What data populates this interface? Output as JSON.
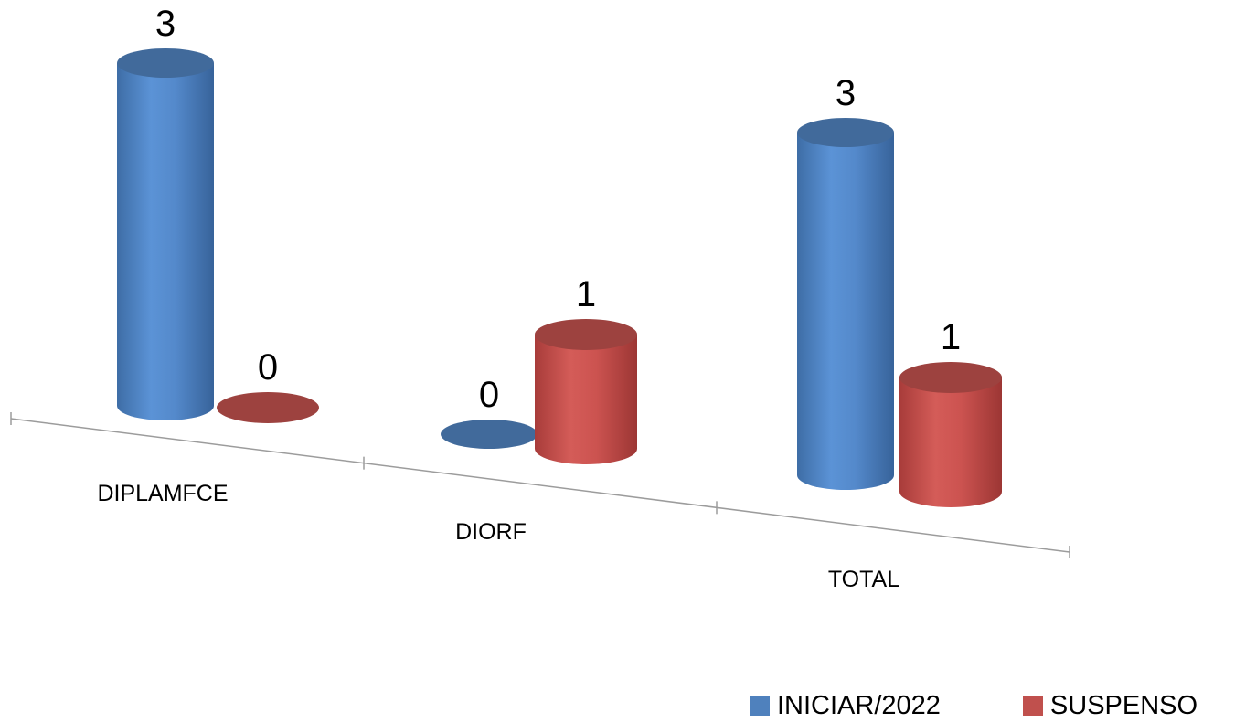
{
  "chart_data": {
    "type": "bar",
    "style": "3d-cylinder",
    "categories": [
      "DIPLAMFCE",
      "DIORF",
      "TOTAL"
    ],
    "series": [
      {
        "name": "INICIAR/2022",
        "values": [
          3,
          0,
          3
        ],
        "color": "#4f81bd"
      },
      {
        "name": "SUSPENSO",
        "values": [
          0,
          1,
          1
        ],
        "color": "#c0504d"
      }
    ],
    "ylim": [
      0,
      3
    ],
    "grid": false,
    "legend_position": "bottom-right",
    "data_labels": true
  }
}
